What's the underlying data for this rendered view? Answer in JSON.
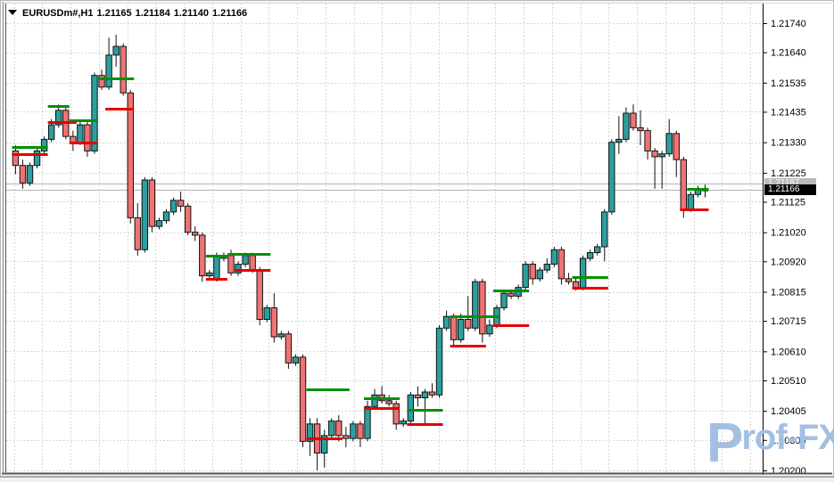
{
  "header": {
    "symbol": "EURUSDm#,H1",
    "open": "1.21165",
    "high": "1.21184",
    "low": "1.21140",
    "close": "1.21166"
  },
  "price_markers": {
    "ask": {
      "label": "1.21187",
      "price": 1.21187
    },
    "bid": {
      "label": "1.21166",
      "price": 1.21166
    }
  },
  "watermark": {
    "p": "P",
    "rest": "rof-FX"
  },
  "colors": {
    "bull": "#2e9e9e",
    "bear": "#ef7373",
    "outline": "#111111",
    "wick": "#111111",
    "grid": "#c9c9c9",
    "segment_green": "#009100",
    "segment_red": "#e60000",
    "bidask_line": "#b4b4b4",
    "axis_text": "#000000",
    "frame": "#6e6e6e",
    "watermark_blue": "#a3c0e2"
  },
  "chart_data": {
    "type": "candlestick",
    "symbol": "EURUSDm#",
    "timeframe": "H1",
    "title": "EURUSDm#,H1 1.21165 1.21184 1.21140 1.21166",
    "grid": true,
    "legend_position": "none",
    "y_axis": {
      "side": "right",
      "top_price": 1.2174,
      "bottom_price": 1.202,
      "labels": [
        "1.21740",
        "1.21640",
        "1.21535",
        "1.21435",
        "1.21330",
        "1.21225",
        "1.21125",
        "1.21020",
        "1.20920",
        "1.20815",
        "1.20715",
        "1.20610",
        "1.20510",
        "1.20405",
        "1.20305",
        "1.20200"
      ]
    },
    "x_axis": {
      "labels_visible": false
    },
    "candles_ohlc": [
      [
        1.213,
        1.2132,
        1.2122,
        1.2125
      ],
      [
        1.2125,
        1.2127,
        1.2117,
        1.2119
      ],
      [
        1.2119,
        1.2126,
        1.2118,
        1.2125
      ],
      [
        1.2125,
        1.2131,
        1.2124,
        1.213
      ],
      [
        1.213,
        1.2135,
        1.2129,
        1.2134
      ],
      [
        1.2134,
        1.2141,
        1.2133,
        1.2139
      ],
      [
        1.2139,
        1.2146,
        1.2138,
        1.2144
      ],
      [
        1.2144,
        1.2145,
        1.2134,
        1.2135
      ],
      [
        1.2135,
        1.2137,
        1.213,
        1.2133
      ],
      [
        1.2133,
        1.214,
        1.2132,
        1.2139
      ],
      [
        1.2139,
        1.214,
        1.2128,
        1.213
      ],
      [
        1.213,
        1.2157,
        1.2129,
        1.2156
      ],
      [
        1.2156,
        1.2158,
        1.2151,
        1.2152
      ],
      [
        1.2152,
        1.2169,
        1.2151,
        1.2163
      ],
      [
        1.2163,
        1.217,
        1.2159,
        1.2166
      ],
      [
        1.2166,
        1.2167,
        1.2149,
        1.215
      ],
      [
        1.215,
        1.2151,
        1.2105,
        1.2107
      ],
      [
        1.2107,
        1.2112,
        1.2094,
        1.2096
      ],
      [
        1.2096,
        1.2121,
        1.2095,
        1.212
      ],
      [
        1.212,
        1.2121,
        1.2102,
        1.2104
      ],
      [
        1.2104,
        1.2107,
        1.2103,
        1.2106
      ],
      [
        1.2106,
        1.211,
        1.2105,
        1.2109
      ],
      [
        1.2109,
        1.2114,
        1.2108,
        1.2113
      ],
      [
        1.2113,
        1.2116,
        1.2109,
        1.2111
      ],
      [
        1.2111,
        1.2112,
        1.2101,
        1.2102
      ],
      [
        1.2102,
        1.2104,
        1.2099,
        1.2101
      ],
      [
        1.2101,
        1.2102,
        1.2085,
        1.2087
      ],
      [
        1.2087,
        1.2089,
        1.2086,
        1.2088
      ],
      [
        1.2086,
        1.2095,
        1.2085,
        1.2094
      ],
      [
        1.2094,
        1.2095,
        1.2092,
        1.2093
      ],
      [
        1.2094,
        1.2096,
        1.2087,
        1.2088
      ],
      [
        1.2088,
        1.2092,
        1.2087,
        1.2091
      ],
      [
        1.2091,
        1.2095,
        1.209,
        1.2094
      ],
      [
        1.2094,
        1.2095,
        1.2088,
        1.2089
      ],
      [
        1.2089,
        1.209,
        1.207,
        1.2072
      ],
      [
        1.2072,
        1.2077,
        1.2071,
        1.2076
      ],
      [
        1.2076,
        1.2081,
        1.2064,
        1.2066
      ],
      [
        1.2066,
        1.2068,
        1.2065,
        1.2067
      ],
      [
        1.2067,
        1.2068,
        1.2055,
        1.2057
      ],
      [
        1.2057,
        1.206,
        1.2056,
        1.2059
      ],
      [
        1.2059,
        1.206,
        1.2028,
        1.203
      ],
      [
        1.203,
        1.2038,
        1.2025,
        1.2036
      ],
      [
        1.2036,
        1.2038,
        1.202,
        1.2026
      ],
      [
        1.2026,
        1.2034,
        1.2021,
        1.2032
      ],
      [
        1.2032,
        1.2038,
        1.2031,
        1.2037
      ],
      [
        1.2037,
        1.2039,
        1.203,
        1.2032
      ],
      [
        1.2032,
        1.2035,
        1.2028,
        1.2031
      ],
      [
        1.2031,
        1.2037,
        1.203,
        1.2036
      ],
      [
        1.2036,
        1.2037,
        1.2028,
        1.2031
      ],
      [
        1.2031,
        1.2044,
        1.203,
        1.2042
      ],
      [
        1.2042,
        1.2048,
        1.2041,
        1.2046
      ],
      [
        1.2046,
        1.2049,
        1.2043,
        1.2044
      ],
      [
        1.2044,
        1.2046,
        1.2042,
        1.2043
      ],
      [
        1.2043,
        1.2044,
        1.2034,
        1.2036
      ],
      [
        1.2036,
        1.2038,
        1.2035,
        1.2037
      ],
      [
        1.2037,
        1.2047,
        1.2036,
        1.2046
      ],
      [
        1.2046,
        1.2049,
        1.2042,
        1.2045
      ],
      [
        1.2045,
        1.2048,
        1.2036,
        1.2047
      ],
      [
        1.2047,
        1.205,
        1.2045,
        1.2046
      ],
      [
        1.2046,
        1.207,
        1.2045,
        1.2069
      ],
      [
        1.2069,
        1.2075,
        1.2068,
        1.2073
      ],
      [
        1.2073,
        1.2074,
        1.2063,
        1.2065
      ],
      [
        1.2065,
        1.2074,
        1.2064,
        1.2072
      ],
      [
        1.2072,
        1.208,
        1.2068,
        1.2069
      ],
      [
        1.2069,
        1.2086,
        1.2068,
        1.2085
      ],
      [
        1.2085,
        1.2086,
        1.2064,
        1.2067
      ],
      [
        1.2067,
        1.2072,
        1.2066,
        1.207
      ],
      [
        1.207,
        1.2077,
        1.2069,
        1.2076
      ],
      [
        1.2076,
        1.2082,
        1.2075,
        1.2081
      ],
      [
        1.2081,
        1.2082,
        1.2079,
        1.208
      ],
      [
        1.208,
        1.2084,
        1.2079,
        1.2083
      ],
      [
        1.2083,
        1.2092,
        1.2082,
        1.2091
      ],
      [
        1.2091,
        1.2092,
        1.2084,
        1.2086
      ],
      [
        1.2086,
        1.209,
        1.2085,
        1.2089
      ],
      [
        1.2089,
        1.2093,
        1.2088,
        1.2091
      ],
      [
        1.2091,
        1.2097,
        1.209,
        1.2096
      ],
      [
        1.2096,
        1.2097,
        1.2084,
        1.2086
      ],
      [
        1.2086,
        1.2088,
        1.2084,
        1.2085
      ],
      [
        1.2085,
        1.2086,
        1.2082,
        1.2083
      ],
      [
        1.2083,
        1.2094,
        1.2082,
        1.2093
      ],
      [
        1.2093,
        1.2096,
        1.2092,
        1.2095
      ],
      [
        1.2095,
        1.2098,
        1.2094,
        1.2097
      ],
      [
        1.2097,
        1.211,
        1.2092,
        1.2109
      ],
      [
        1.2109,
        1.2134,
        1.2108,
        1.2133
      ],
      [
        1.2133,
        1.2142,
        1.2129,
        1.2134
      ],
      [
        1.2134,
        1.2145,
        1.2133,
        1.2143
      ],
      [
        1.2143,
        1.2146,
        1.2137,
        1.2138
      ],
      [
        1.2138,
        1.2144,
        1.2132,
        1.2137
      ],
      [
        1.2137,
        1.2138,
        1.2127,
        1.213
      ],
      [
        1.213,
        1.2131,
        1.2117,
        1.2128
      ],
      [
        1.2128,
        1.213,
        1.2117,
        1.2129
      ],
      [
        1.2129,
        1.2141,
        1.2128,
        1.2136
      ],
      [
        1.2136,
        1.2137,
        1.2121,
        1.2127
      ],
      [
        1.2127,
        1.2128,
        1.2107,
        1.211
      ],
      [
        1.211,
        1.2116,
        1.2109,
        1.2115
      ],
      [
        1.2115,
        1.2118,
        1.2114,
        1.2117
      ],
      [
        1.21165,
        1.21184,
        1.2114,
        1.21166
      ]
    ],
    "indicator_segments": [
      {
        "color": "green",
        "price": 1.21315,
        "from": 0,
        "to": 4
      },
      {
        "color": "red",
        "price": 1.2129,
        "from": 0,
        "to": 4
      },
      {
        "color": "green",
        "price": 1.21455,
        "from": 5,
        "to": 7
      },
      {
        "color": "red",
        "price": 1.214,
        "from": 5,
        "to": 8
      },
      {
        "color": "green",
        "price": 1.21405,
        "from": 8,
        "to": 11
      },
      {
        "color": "red",
        "price": 1.2133,
        "from": 8,
        "to": 11
      },
      {
        "color": "green",
        "price": 1.2155,
        "from": 12,
        "to": 16
      },
      {
        "color": "red",
        "price": 1.21445,
        "from": 13,
        "to": 16
      },
      {
        "color": "green",
        "price": 1.2094,
        "from": 27,
        "to": 29
      },
      {
        "color": "red",
        "price": 1.2086,
        "from": 27,
        "to": 29
      },
      {
        "color": "green",
        "price": 1.20945,
        "from": 30,
        "to": 35
      },
      {
        "color": "red",
        "price": 1.2089,
        "from": 31,
        "to": 35
      },
      {
        "color": "green",
        "price": 1.2048,
        "from": 41,
        "to": 46
      },
      {
        "color": "red",
        "price": 1.2031,
        "from": 41,
        "to": 45
      },
      {
        "color": "green",
        "price": 1.2045,
        "from": 49,
        "to": 53
      },
      {
        "color": "red",
        "price": 1.20415,
        "from": 49,
        "to": 53
      },
      {
        "color": "green",
        "price": 1.2041,
        "from": 55,
        "to": 59
      },
      {
        "color": "red",
        "price": 1.2036,
        "from": 55,
        "to": 59
      },
      {
        "color": "green",
        "price": 1.2073,
        "from": 61,
        "to": 67
      },
      {
        "color": "red",
        "price": 1.2063,
        "from": 61,
        "to": 65
      },
      {
        "color": "green",
        "price": 1.2082,
        "from": 67,
        "to": 71
      },
      {
        "color": "red",
        "price": 1.207,
        "from": 67,
        "to": 71
      },
      {
        "color": "green",
        "price": 1.20865,
        "from": 78,
        "to": 82
      },
      {
        "color": "red",
        "price": 1.2083,
        "from": 78,
        "to": 82
      },
      {
        "color": "green",
        "price": 1.2117,
        "from": 94,
        "to": 96
      },
      {
        "color": "red",
        "price": 1.211,
        "from": 93,
        "to": 96
      }
    ],
    "ask_line": 1.21187,
    "bid_line": 1.21166
  }
}
